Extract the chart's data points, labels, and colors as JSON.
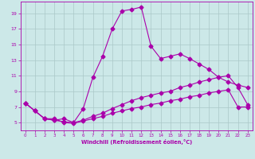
{
  "xlabel": "Windchill (Refroidissement éolien,°C)",
  "background_color": "#cce8e8",
  "grid_color": "#aac8c8",
  "line_color": "#aa00aa",
  "xlim": [
    -0.5,
    23.5
  ],
  "ylim": [
    4.0,
    20.5
  ],
  "xticks": [
    0,
    1,
    2,
    3,
    4,
    5,
    6,
    7,
    8,
    9,
    10,
    11,
    12,
    13,
    14,
    15,
    16,
    17,
    18,
    19,
    20,
    21,
    22,
    23
  ],
  "yticks": [
    5,
    7,
    9,
    11,
    13,
    15,
    17,
    19
  ],
  "line1_x": [
    0,
    1,
    2,
    3,
    4,
    5,
    6,
    7,
    8,
    9,
    10,
    11,
    12,
    13,
    14,
    15,
    16,
    17,
    18,
    19,
    20,
    21,
    22,
    23
  ],
  "line1_y": [
    7.5,
    6.5,
    5.5,
    5.3,
    5.1,
    5.0,
    6.8,
    10.8,
    13.5,
    17.0,
    19.3,
    19.5,
    19.8,
    14.8,
    13.2,
    13.5,
    13.8,
    13.2,
    12.5,
    11.8,
    10.8,
    10.2,
    9.8,
    9.5
  ],
  "line2_x": [
    0,
    1,
    2,
    3,
    4,
    5,
    6,
    7,
    8,
    9,
    10,
    11,
    12,
    13,
    14,
    15,
    16,
    17,
    18,
    19,
    20,
    21,
    22,
    23
  ],
  "line2_y": [
    7.5,
    6.5,
    5.5,
    5.3,
    5.5,
    5.0,
    5.3,
    5.8,
    6.2,
    6.8,
    7.3,
    7.8,
    8.2,
    8.5,
    8.8,
    9.0,
    9.5,
    9.8,
    10.2,
    10.5,
    10.8,
    11.0,
    9.5,
    7.3
  ],
  "line3_x": [
    0,
    1,
    2,
    3,
    4,
    5,
    6,
    7,
    8,
    9,
    10,
    11,
    12,
    13,
    14,
    15,
    16,
    17,
    18,
    19,
    20,
    21,
    22,
    23
  ],
  "line3_y": [
    7.5,
    6.5,
    5.5,
    5.5,
    5.0,
    4.9,
    5.2,
    5.5,
    5.8,
    6.2,
    6.5,
    6.8,
    7.0,
    7.3,
    7.5,
    7.8,
    8.0,
    8.3,
    8.5,
    8.8,
    9.0,
    9.2,
    7.0,
    7.0
  ]
}
